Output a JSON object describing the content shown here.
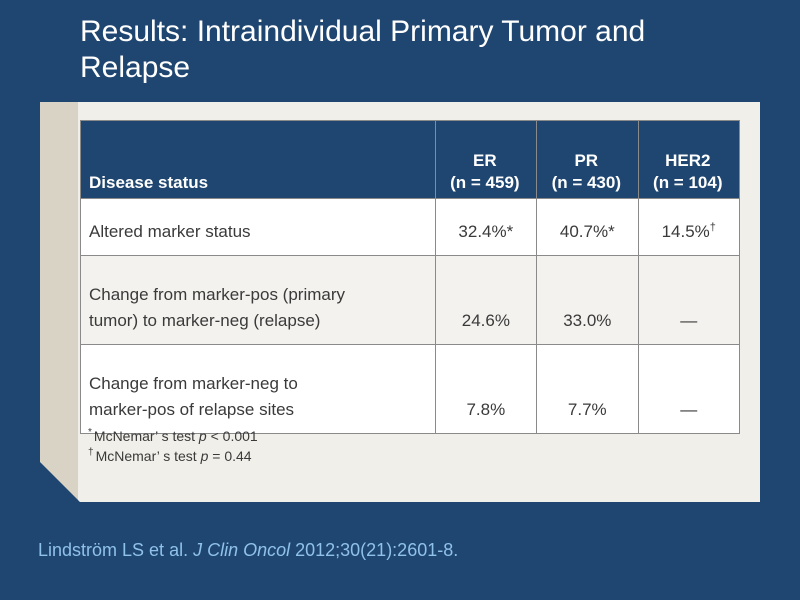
{
  "slide": {
    "title": "Results: Intraindividual Primary Tumor and Relapse"
  },
  "table": {
    "header": {
      "disease_status": "Disease status",
      "er": {
        "name": "ER",
        "n": "(n = 459)"
      },
      "pr": {
        "name": "PR",
        "n": "(n = 430)"
      },
      "her2": {
        "name": "HER2",
        "n": "(n = 104)"
      }
    },
    "rows": [
      {
        "label_line1": "Altered marker status",
        "label_line2": "",
        "er": "32.4%",
        "er_mark": "*",
        "pr": "40.7%",
        "pr_mark": "*",
        "her2": "14.5%",
        "her2_mark": "†"
      },
      {
        "label_line1": "Change from marker-pos (primary",
        "label_line2": "tumor) to marker-neg (relapse)",
        "er": "24.6%",
        "pr": "33.0%",
        "her2": "—"
      },
      {
        "label_line1": "Change from marker-neg to",
        "label_line2": "marker-pos of relapse sites",
        "er": "7.8%",
        "pr": "7.7%",
        "her2": "—"
      }
    ]
  },
  "footnotes": [
    {
      "mark": "*",
      "prefix": "McNemar’ s test ",
      "italic": "p",
      "suffix": " < 0.001"
    },
    {
      "mark": "†",
      "prefix": "McNemar’ s test ",
      "italic": "p",
      "suffix": " = 0.44"
    }
  ],
  "citation": {
    "authors": "Lindström LS et al. ",
    "journal": "J Clin Oncol",
    "details": " 2012;30(21):2601-8."
  }
}
